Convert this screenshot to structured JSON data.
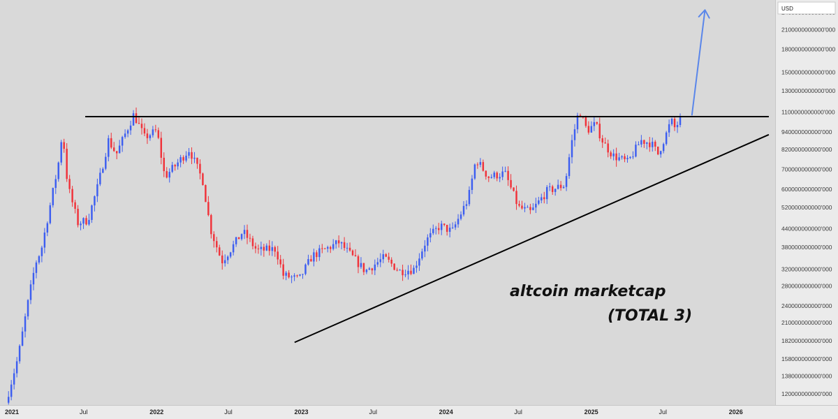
{
  "currency_selector": {
    "value": "USD"
  },
  "annotations": {
    "line1": "altcoin marketcap",
    "line2": "(TOTAL 3)"
  },
  "colors": {
    "up": "#3d5ef0",
    "down": "#f0323a",
    "arrow": "#5a86ea",
    "trendline": "#000000",
    "background": "#d9d9d9"
  },
  "chart_data": {
    "type": "candlestick",
    "y_scale": "log",
    "ylim": [
      110000000000,
      2650000000000
    ],
    "y_ticks": [
      {
        "value": 2400000000000,
        "label": "2400000000000'000"
      },
      {
        "value": 2100000000000,
        "label": "2100000000000'000"
      },
      {
        "value": 1800000000000,
        "label": "1800000000000'000"
      },
      {
        "value": 1500000000000,
        "label": "1500000000000'000"
      },
      {
        "value": 1300000000000,
        "label": "1300000000000'000"
      },
      {
        "value": 1100000000000,
        "label": "1100000000000'000"
      },
      {
        "value": 940000000000,
        "label": "940000000000'000"
      },
      {
        "value": 820000000000,
        "label": "820000000000'000"
      },
      {
        "value": 700000000000,
        "label": "700000000000'000"
      },
      {
        "value": 600000000000,
        "label": "600000000000'000"
      },
      {
        "value": 520000000000,
        "label": "520000000000'000"
      },
      {
        "value": 440000000000,
        "label": "440000000000'000"
      },
      {
        "value": 380000000000,
        "label": "380000000000'000"
      },
      {
        "value": 320000000000,
        "label": "320000000000'000"
      },
      {
        "value": 280000000000,
        "label": "280000000000'000"
      },
      {
        "value": 240000000000,
        "label": "240000000000'000"
      },
      {
        "value": 210000000000,
        "label": "210000000000'000"
      },
      {
        "value": 182000000000,
        "label": "182000000000'000"
      },
      {
        "value": 158000000000,
        "label": "158000000000'000"
      },
      {
        "value": 138000000000,
        "label": "138000000000'000"
      },
      {
        "value": 120000000000,
        "label": "120000000000'000"
      }
    ],
    "x_ticks": [
      {
        "date": "2021-01-01",
        "label": "2021",
        "major": true
      },
      {
        "date": "2021-07-01",
        "label": "Jul",
        "major": false
      },
      {
        "date": "2022-01-01",
        "label": "2022",
        "major": true
      },
      {
        "date": "2022-07-01",
        "label": "Jul",
        "major": false
      },
      {
        "date": "2023-01-01",
        "label": "2023",
        "major": true
      },
      {
        "date": "2023-07-01",
        "label": "Jul",
        "major": false
      },
      {
        "date": "2024-01-01",
        "label": "2024",
        "major": true
      },
      {
        "date": "2024-07-01",
        "label": "Jul",
        "major": false
      },
      {
        "date": "2025-01-01",
        "label": "2025",
        "major": true
      },
      {
        "date": "2025-07-01",
        "label": "Jul",
        "major": false
      },
      {
        "date": "2026-01-01",
        "label": "2026",
        "major": true
      }
    ],
    "xlim": [
      "2020-12-02",
      "2026-04-10"
    ],
    "close_path": [
      [
        "2020-12-20",
        112000000000
      ],
      [
        "2021-01-05",
        135000000000
      ],
      [
        "2021-01-20",
        160000000000
      ],
      [
        "2021-02-15",
        250000000000
      ],
      [
        "2021-03-05",
        335000000000
      ],
      [
        "2021-03-20",
        375000000000
      ],
      [
        "2021-04-10",
        520000000000
      ],
      [
        "2021-05-01",
        720000000000
      ],
      [
        "2021-05-12",
        950000000000
      ],
      [
        "2021-05-25",
        620000000000
      ],
      [
        "2021-06-20",
        460000000000
      ],
      [
        "2021-07-15",
        470000000000
      ],
      [
        "2021-08-10",
        620000000000
      ],
      [
        "2021-09-05",
        880000000000
      ],
      [
        "2021-09-25",
        790000000000
      ],
      [
        "2021-11-08",
        1080000000000
      ],
      [
        "2021-12-05",
        900000000000
      ],
      [
        "2022-01-05",
        950000000000
      ],
      [
        "2022-01-25",
        660000000000
      ],
      [
        "2022-02-20",
        720000000000
      ],
      [
        "2022-03-28",
        820000000000
      ],
      [
        "2022-05-01",
        640000000000
      ],
      [
        "2022-05-20",
        440000000000
      ],
      [
        "2022-06-18",
        340000000000
      ],
      [
        "2022-07-20",
        390000000000
      ],
      [
        "2022-08-10",
        430000000000
      ],
      [
        "2022-09-15",
        370000000000
      ],
      [
        "2022-11-01",
        375000000000
      ],
      [
        "2022-11-20",
        305000000000
      ],
      [
        "2022-12-30",
        295000000000
      ],
      [
        "2023-02-01",
        355000000000
      ],
      [
        "2023-04-10",
        395000000000
      ],
      [
        "2023-06-15",
        315000000000
      ],
      [
        "2023-08-01",
        350000000000
      ],
      [
        "2023-09-10",
        315000000000
      ],
      [
        "2023-10-15",
        320000000000
      ],
      [
        "2023-11-15",
        400000000000
      ],
      [
        "2023-12-20",
        450000000000
      ],
      [
        "2024-01-20",
        430000000000
      ],
      [
        "2024-03-01",
        560000000000
      ],
      [
        "2024-03-20",
        760000000000
      ],
      [
        "2024-04-20",
        660000000000
      ],
      [
        "2024-06-01",
        680000000000
      ],
      [
        "2024-07-05",
        520000000000
      ],
      [
        "2024-08-05",
        500000000000
      ],
      [
        "2024-09-15",
        590000000000
      ],
      [
        "2024-10-30",
        620000000000
      ],
      [
        "2024-11-15",
        850000000000
      ],
      [
        "2024-12-05",
        1120000000000
      ],
      [
        "2024-12-25",
        950000000000
      ],
      [
        "2025-01-15",
        1000000000000
      ],
      [
        "2025-02-05",
        860000000000
      ],
      [
        "2025-03-01",
        780000000000
      ],
      [
        "2025-04-07",
        740000000000
      ],
      [
        "2025-05-10",
        880000000000
      ],
      [
        "2025-06-05",
        860000000000
      ],
      [
        "2025-06-22",
        790000000000
      ],
      [
        "2025-07-15",
        940000000000
      ],
      [
        "2025-07-25",
        1030000000000
      ],
      [
        "2025-08-05",
        960000000000
      ],
      [
        "2025-08-15",
        1040000000000
      ]
    ],
    "horizontal_resistance": {
      "start": "2021-07-05",
      "end": "2026-03-25",
      "value": 1060000000000
    },
    "rising_support": [
      [
        "2022-12-15",
        180000000000
      ],
      [
        "2026-03-25",
        920000000000
      ]
    ],
    "projection_arrow": {
      "from": [
        "2025-09-12",
        1070000000000
      ],
      "to": [
        "2025-10-15",
        2450000000000
      ]
    }
  }
}
